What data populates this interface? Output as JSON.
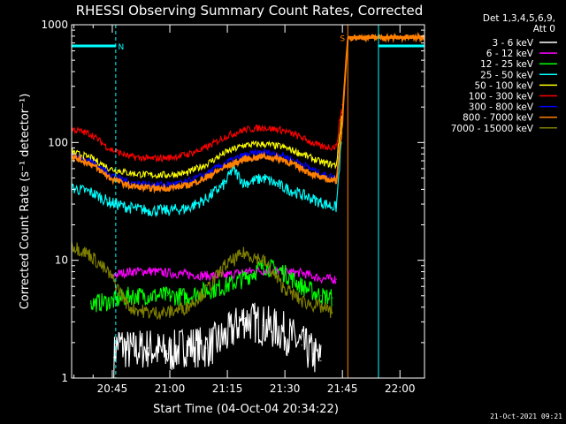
{
  "chart_data": {
    "type": "line",
    "title": "RHESSI Observing Summary Count Rates, Corrected",
    "xlabel": "Start Time (04-Oct-04 20:34:22)",
    "ylabel": "Corrected Count Rate (s⁻¹ detector⁻¹)",
    "yscale": "log",
    "ylim": [
      1,
      1000
    ],
    "xlim_minutes": [
      0,
      92
    ],
    "x_unit": "minutes after 20:34:22",
    "x_ticks": [
      {
        "label": "20:45",
        "value": 10.6
      },
      {
        "label": "21:00",
        "value": 25.6
      },
      {
        "label": "21:15",
        "value": 40.6
      },
      {
        "label": "21:30",
        "value": 55.6
      },
      {
        "label": "21:45",
        "value": 70.6
      },
      {
        "label": "22:00",
        "value": 85.6
      }
    ],
    "y_ticks": [
      {
        "label": "1",
        "value": 1
      },
      {
        "label": "10",
        "value": 10
      },
      {
        "label": "100",
        "value": 100
      },
      {
        "label": "1000",
        "value": 1000
      }
    ],
    "legend_header": [
      "Det 1,3,4,5,6,9,",
      "Att 0"
    ],
    "legend_position": "right",
    "timestamp": "21-Oct-2021 09:21",
    "series": [
      {
        "name": "3 - 6 keV",
        "color": "#ffffff",
        "x": [
          11,
          12,
          15,
          20,
          25,
          30,
          35,
          40,
          45,
          50,
          55,
          60,
          63,
          65
        ],
        "y": [
          1.5,
          2,
          1.7,
          1.8,
          1.6,
          1.9,
          1.8,
          2.2,
          3.2,
          2.8,
          2.5,
          1.9,
          1.6,
          1.4
        ]
      },
      {
        "name": "6 - 12 keV",
        "color": "#ff00ff",
        "x": [
          11,
          15,
          20,
          25,
          30,
          35,
          40,
          45,
          50,
          55,
          60,
          65,
          69
        ],
        "y": [
          7.5,
          8,
          8.1,
          7.8,
          7.6,
          7.4,
          7.4,
          8,
          8.2,
          8,
          7.8,
          7,
          6.9
        ]
      },
      {
        "name": "12 - 25 keV",
        "color": "#00ff00",
        "x": [
          5,
          11,
          15,
          20,
          25,
          30,
          35,
          40,
          45,
          50,
          55,
          60,
          65,
          68
        ],
        "y": [
          4.3,
          4.5,
          5,
          5,
          5,
          4.9,
          5.5,
          6,
          7,
          9,
          8,
          6,
          5,
          4.8
        ]
      },
      {
        "name": "25 - 50 keV",
        "color": "#00ffff",
        "x": [
          0,
          5,
          10,
          15,
          20,
          25,
          30,
          35,
          40,
          42,
          45,
          50,
          55,
          60,
          65,
          69,
          70.5
        ],
        "y": [
          41,
          38,
          31,
          28,
          26.5,
          26.5,
          27.5,
          33,
          45,
          60,
          45,
          50,
          42,
          36,
          31,
          28,
          120
        ]
      },
      {
        "name": "50 - 100 keV",
        "color": "#ffff00",
        "x": [
          0,
          5,
          10,
          15,
          20,
          25,
          30,
          35,
          40,
          45,
          50,
          55,
          60,
          65,
          69,
          70.5
        ],
        "y": [
          83,
          74,
          60,
          55,
          53,
          53,
          55,
          65,
          82,
          95,
          97,
          92,
          80,
          68,
          64,
          180
        ]
      },
      {
        "name": "100 - 300 keV",
        "color": "#ff0000",
        "x": [
          0,
          5,
          10,
          15,
          20,
          25,
          30,
          35,
          40,
          45,
          50,
          55,
          60,
          65,
          69,
          70.5
        ],
        "y": [
          130,
          118,
          88,
          76,
          73,
          74,
          79,
          90,
          112,
          128,
          134,
          127,
          110,
          92,
          92,
          210
        ]
      },
      {
        "name": "300 - 800 keV",
        "color": "#0000ff",
        "x": [
          0,
          5,
          10,
          15,
          20,
          25,
          30,
          35,
          40,
          45,
          50,
          55,
          60,
          65,
          69,
          70.5
        ],
        "y": [
          78,
          70,
          54,
          46,
          44,
          44,
          46,
          54,
          67,
          78,
          83,
          78,
          66,
          54,
          50,
          150
        ]
      },
      {
        "name": "800 - 7000 keV",
        "color": "#ff8000",
        "x": [
          0,
          5,
          10,
          15,
          20,
          25,
          30,
          35,
          40,
          45,
          50,
          55,
          60,
          65,
          69,
          70.5,
          72,
          92
        ],
        "y": [
          76,
          66,
          50,
          43,
          41,
          41,
          43,
          50,
          62,
          72,
          76,
          72,
          60,
          50,
          47,
          140,
          780,
          780
        ]
      },
      {
        "name": "7000 - 15000 keV",
        "color": "#808000",
        "x": [
          0,
          5,
          10,
          15,
          20,
          25,
          30,
          35,
          40,
          45,
          50,
          55,
          60,
          65,
          68
        ],
        "y": [
          13.5,
          11,
          7.5,
          4,
          3.6,
          3.6,
          4,
          5.5,
          9,
          11.5,
          10,
          6,
          4.5,
          4,
          3.6
        ]
      }
    ],
    "overlays": [
      {
        "label": "N",
        "color": "#00ffff",
        "x_start": 0,
        "x_end": 11.5,
        "level": 660
      },
      {
        "label": "S",
        "color": "#ff8000",
        "x_start": 72,
        "x_end": 92,
        "level": 780
      },
      {
        "label": "",
        "color": "#00ffff",
        "x_start": 80,
        "x_end": 92,
        "level": 660
      }
    ]
  }
}
